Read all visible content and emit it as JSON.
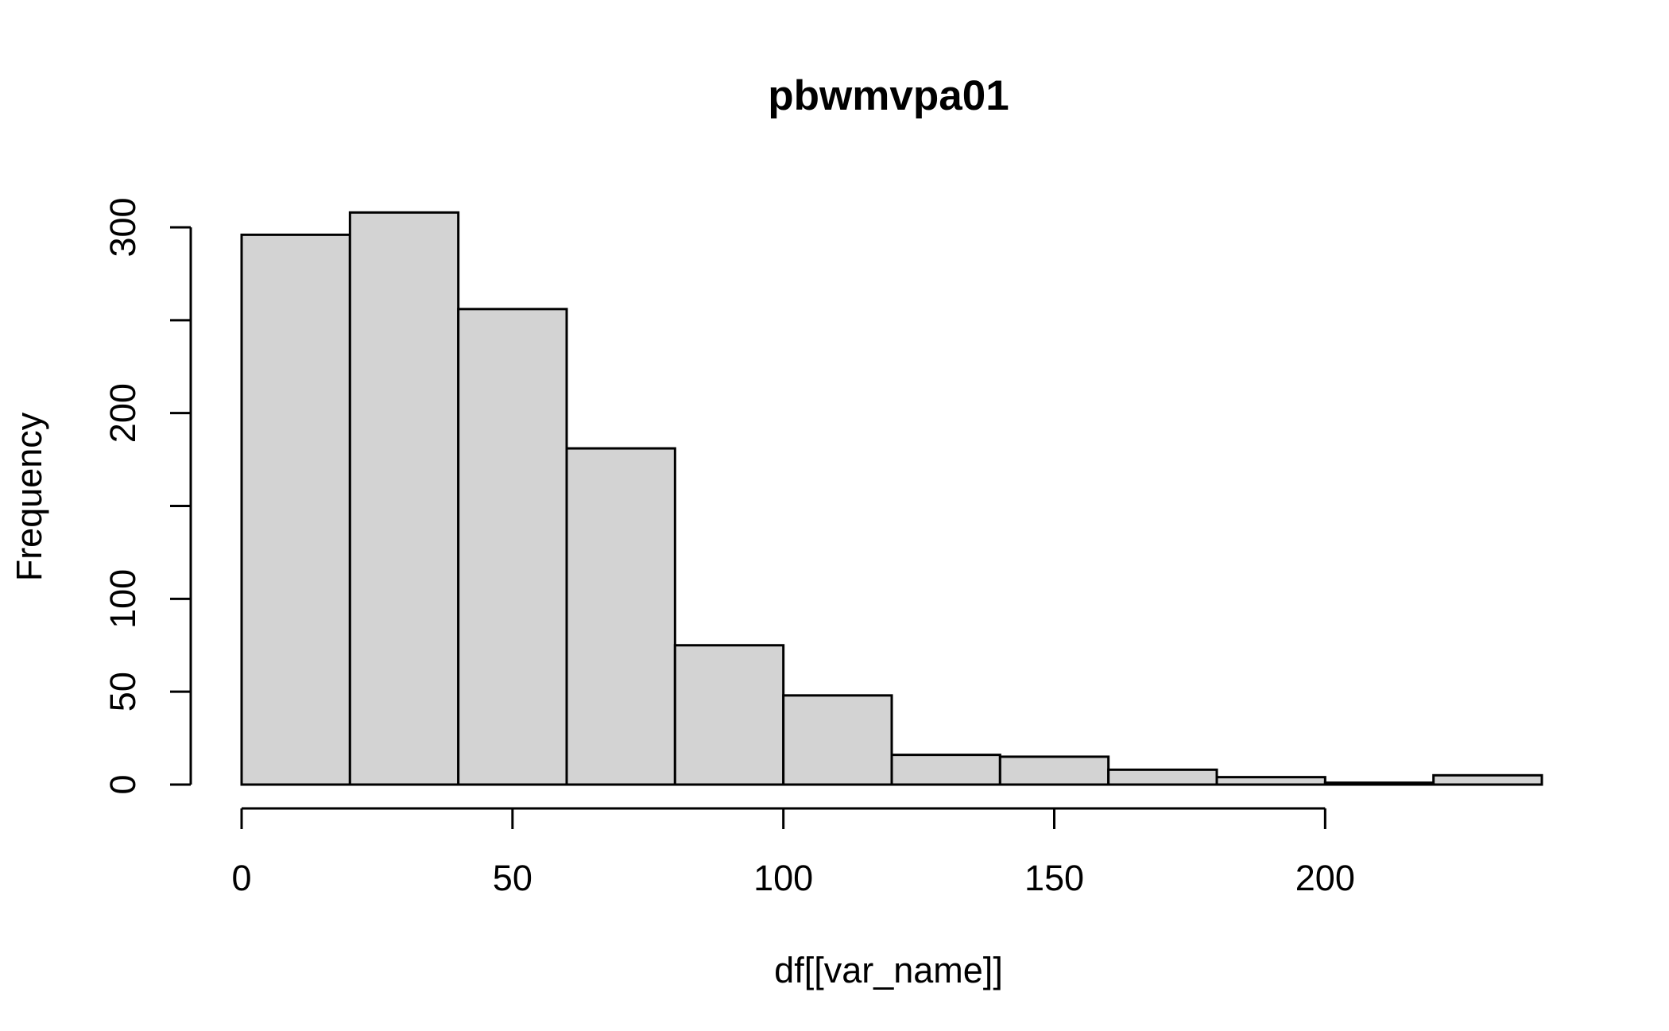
{
  "chart_data": {
    "type": "bar",
    "title": "pbwmvpa01",
    "xlabel": "df[[var_name]]",
    "ylabel": "Frequency",
    "bins": [
      {
        "x0": 0,
        "x1": 20,
        "count": 296
      },
      {
        "x0": 20,
        "x1": 40,
        "count": 308
      },
      {
        "x0": 40,
        "x1": 60,
        "count": 256
      },
      {
        "x0": 60,
        "x1": 80,
        "count": 181
      },
      {
        "x0": 80,
        "x1": 100,
        "count": 75
      },
      {
        "x0": 100,
        "x1": 120,
        "count": 48
      },
      {
        "x0": 120,
        "x1": 140,
        "count": 16
      },
      {
        "x0": 140,
        "x1": 160,
        "count": 15
      },
      {
        "x0": 160,
        "x1": 180,
        "count": 8
      },
      {
        "x0": 180,
        "x1": 200,
        "count": 4
      },
      {
        "x0": 200,
        "x1": 220,
        "count": 1
      },
      {
        "x0": 220,
        "x1": 240,
        "count": 5
      }
    ],
    "xlim": [
      0,
      240
    ],
    "ylim": [
      0,
      308
    ],
    "xticks": [
      0,
      50,
      100,
      150,
      200
    ],
    "yticks": [
      0,
      50,
      100,
      150,
      200,
      250,
      300
    ],
    "ytick_labels": [
      "0",
      "50",
      "100",
      "",
      "200",
      "",
      "300"
    ],
    "grid": false,
    "bar_color": "#d3d3d3",
    "edge_color": "#000000"
  }
}
